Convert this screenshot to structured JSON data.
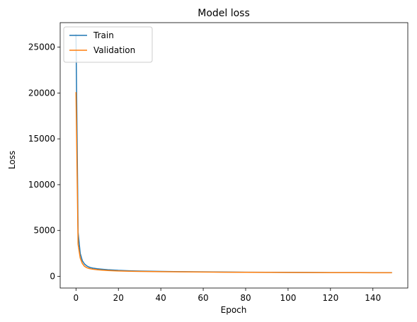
{
  "chart_data": {
    "type": "line",
    "title": "Model loss",
    "xlabel": "Epoch",
    "ylabel": "Loss",
    "xlim": [
      -7.45,
      156.45
    ],
    "ylim": [
      -1275,
      27675
    ],
    "xticks": [
      0,
      20,
      40,
      60,
      80,
      100,
      120,
      140
    ],
    "yticks": [
      0,
      5000,
      10000,
      15000,
      20000,
      25000
    ],
    "grid": false,
    "legend_position": "top-left",
    "series": [
      {
        "name": "Train",
        "color": "#1f77b4",
        "x": [
          0,
          1,
          2,
          3,
          4,
          5,
          6,
          7,
          8,
          10,
          12,
          15,
          20,
          25,
          30,
          40,
          50,
          60,
          70,
          80,
          90,
          100,
          110,
          120,
          130,
          140,
          149
        ],
        "y": [
          26400,
          4800,
          2500,
          1700,
          1350,
          1150,
          1020,
          950,
          900,
          830,
          780,
          720,
          650,
          610,
          580,
          540,
          510,
          490,
          470,
          455,
          445,
          435,
          425,
          418,
          412,
          405,
          400
        ]
      },
      {
        "name": "Validation",
        "color": "#ff7f0e",
        "x": [
          0,
          1,
          2,
          3,
          4,
          5,
          6,
          7,
          8,
          10,
          12,
          15,
          20,
          25,
          30,
          40,
          50,
          60,
          70,
          80,
          90,
          100,
          110,
          120,
          130,
          140,
          149
        ],
        "y": [
          20100,
          3500,
          2000,
          1400,
          1100,
          950,
          870,
          820,
          780,
          720,
          680,
          640,
          590,
          560,
          540,
          510,
          490,
          470,
          455,
          440,
          430,
          422,
          415,
          408,
          402,
          398,
          395
        ]
      }
    ]
  }
}
